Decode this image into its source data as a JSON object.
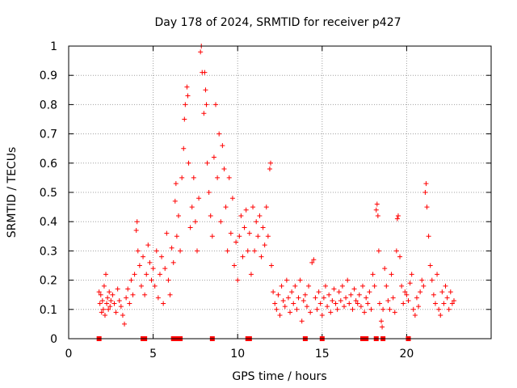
{
  "chart_data": {
    "type": "scatter",
    "title": "Day 178 of 2024, SRMTID for receiver p427",
    "xlabel": "GPS time / hours",
    "ylabel": "SRMTID / TECUs",
    "xlim": [
      0,
      25
    ],
    "ylim": [
      0,
      1
    ],
    "xticks": [
      0,
      5,
      10,
      15,
      20
    ],
    "yticks": [
      0,
      0.1,
      0.2,
      0.3,
      0.4,
      0.5,
      0.6,
      0.7,
      0.8,
      0.9,
      1
    ],
    "xtick_labels": [
      "0",
      "5",
      "10",
      "15",
      "20"
    ],
    "ytick_labels": [
      "0",
      "0.1",
      "0.2",
      "0.3",
      "0.4",
      "0.5",
      "0.6",
      "0.7",
      "0.8",
      "0.9",
      "1"
    ],
    "grid": true,
    "color": "#ff0000",
    "marker": "plus",
    "series": [
      {
        "name": "SRMTID",
        "points": [
          [
            1.8,
            0.16
          ],
          [
            1.85,
            0.12
          ],
          [
            1.9,
            0.15
          ],
          [
            1.95,
            0.09
          ],
          [
            2.0,
            0.13
          ],
          [
            2.05,
            0.1
          ],
          [
            2.1,
            0.18
          ],
          [
            2.15,
            0.08
          ],
          [
            2.2,
            0.22
          ],
          [
            2.25,
            0.12
          ],
          [
            2.3,
            0.14
          ],
          [
            2.35,
            0.1
          ],
          [
            2.4,
            0.16
          ],
          [
            2.45,
            0.11
          ],
          [
            2.5,
            0.13
          ],
          [
            2.6,
            0.15
          ],
          [
            2.7,
            0.12
          ],
          [
            2.8,
            0.09
          ],
          [
            2.9,
            0.17
          ],
          [
            3.0,
            0.13
          ],
          [
            3.1,
            0.11
          ],
          [
            3.2,
            0.08
          ],
          [
            3.3,
            0.05
          ],
          [
            3.4,
            0.14
          ],
          [
            3.5,
            0.17
          ],
          [
            3.6,
            0.12
          ],
          [
            3.7,
            0.2
          ],
          [
            3.8,
            0.15
          ],
          [
            3.9,
            0.22
          ],
          [
            4.0,
            0.37
          ],
          [
            4.05,
            0.4
          ],
          [
            4.1,
            0.3
          ],
          [
            4.2,
            0.25
          ],
          [
            4.3,
            0.18
          ],
          [
            4.4,
            0.28
          ],
          [
            4.5,
            0.15
          ],
          [
            4.6,
            0.22
          ],
          [
            4.7,
            0.32
          ],
          [
            4.8,
            0.26
          ],
          [
            4.9,
            0.2
          ],
          [
            5.0,
            0.24
          ],
          [
            5.1,
            0.18
          ],
          [
            5.2,
            0.3
          ],
          [
            5.3,
            0.14
          ],
          [
            5.4,
            0.22
          ],
          [
            5.5,
            0.28
          ],
          [
            5.6,
            0.12
          ],
          [
            5.7,
            0.24
          ],
          [
            5.8,
            0.36
          ],
          [
            5.9,
            0.2
          ],
          [
            6.0,
            0.15
          ],
          [
            6.1,
            0.31
          ],
          [
            6.2,
            0.26
          ],
          [
            6.3,
            0.47
          ],
          [
            6.35,
            0.53
          ],
          [
            6.4,
            0.35
          ],
          [
            6.5,
            0.42
          ],
          [
            6.6,
            0.3
          ],
          [
            6.7,
            0.55
          ],
          [
            6.8,
            0.65
          ],
          [
            6.85,
            0.75
          ],
          [
            6.9,
            0.8
          ],
          [
            7.0,
            0.86
          ],
          [
            7.05,
            0.83
          ],
          [
            7.1,
            0.6
          ],
          [
            7.2,
            0.38
          ],
          [
            7.3,
            0.45
          ],
          [
            7.4,
            0.55
          ],
          [
            7.5,
            0.4
          ],
          [
            7.6,
            0.3
          ],
          [
            7.7,
            0.48
          ],
          [
            7.8,
            0.98
          ],
          [
            7.85,
            1.0
          ],
          [
            7.9,
            0.91
          ],
          [
            8.0,
            0.77
          ],
          [
            8.05,
            0.91
          ],
          [
            8.1,
            0.85
          ],
          [
            8.15,
            0.8
          ],
          [
            8.2,
            0.6
          ],
          [
            8.3,
            0.5
          ],
          [
            8.4,
            0.42
          ],
          [
            8.5,
            0.35
          ],
          [
            8.6,
            0.62
          ],
          [
            8.7,
            0.8
          ],
          [
            8.8,
            0.55
          ],
          [
            8.9,
            0.7
          ],
          [
            9.0,
            0.4
          ],
          [
            9.1,
            0.66
          ],
          [
            9.2,
            0.58
          ],
          [
            9.3,
            0.45
          ],
          [
            9.4,
            0.3
          ],
          [
            9.5,
            0.55
          ],
          [
            9.6,
            0.36
          ],
          [
            9.7,
            0.48
          ],
          [
            9.8,
            0.25
          ],
          [
            9.9,
            0.33
          ],
          [
            10.0,
            0.2
          ],
          [
            10.1,
            0.35
          ],
          [
            10.2,
            0.42
          ],
          [
            10.3,
            0.28
          ],
          [
            10.4,
            0.38
          ],
          [
            10.5,
            0.44
          ],
          [
            10.6,
            0.3
          ],
          [
            10.7,
            0.36
          ],
          [
            10.8,
            0.22
          ],
          [
            10.9,
            0.45
          ],
          [
            11.0,
            0.3
          ],
          [
            11.1,
            0.4
          ],
          [
            11.2,
            0.35
          ],
          [
            11.3,
            0.42
          ],
          [
            11.4,
            0.28
          ],
          [
            11.5,
            0.38
          ],
          [
            11.6,
            0.32
          ],
          [
            11.7,
            0.45
          ],
          [
            11.8,
            0.35
          ],
          [
            11.9,
            0.58
          ],
          [
            11.95,
            0.6
          ],
          [
            12.0,
            0.25
          ],
          [
            12.1,
            0.16
          ],
          [
            12.2,
            0.12
          ],
          [
            12.3,
            0.1
          ],
          [
            12.4,
            0.15
          ],
          [
            12.5,
            0.08
          ],
          [
            12.6,
            0.18
          ],
          [
            12.7,
            0.13
          ],
          [
            12.8,
            0.11
          ],
          [
            12.9,
            0.2
          ],
          [
            13.0,
            0.14
          ],
          [
            13.1,
            0.09
          ],
          [
            13.2,
            0.16
          ],
          [
            13.3,
            0.12
          ],
          [
            13.4,
            0.18
          ],
          [
            13.5,
            0.1
          ],
          [
            13.6,
            0.14
          ],
          [
            13.7,
            0.2
          ],
          [
            13.8,
            0.06
          ],
          [
            13.9,
            0.13
          ],
          [
            14.0,
            0.15
          ],
          [
            14.1,
            0.11
          ],
          [
            14.2,
            0.18
          ],
          [
            14.3,
            0.09
          ],
          [
            14.4,
            0.26
          ],
          [
            14.5,
            0.27
          ],
          [
            14.6,
            0.14
          ],
          [
            14.7,
            0.1
          ],
          [
            14.8,
            0.16
          ],
          [
            14.9,
            0.12
          ],
          [
            15.0,
            0.08
          ],
          [
            15.1,
            0.14
          ],
          [
            15.2,
            0.18
          ],
          [
            15.3,
            0.11
          ],
          [
            15.4,
            0.15
          ],
          [
            15.5,
            0.09
          ],
          [
            15.6,
            0.13
          ],
          [
            15.7,
            0.17
          ],
          [
            15.8,
            0.12
          ],
          [
            15.9,
            0.1
          ],
          [
            16.0,
            0.16
          ],
          [
            16.1,
            0.13
          ],
          [
            16.2,
            0.18
          ],
          [
            16.3,
            0.11
          ],
          [
            16.4,
            0.14
          ],
          [
            16.5,
            0.2
          ],
          [
            16.6,
            0.12
          ],
          [
            16.7,
            0.15
          ],
          [
            16.8,
            0.1
          ],
          [
            16.9,
            0.17
          ],
          [
            17.0,
            0.13
          ],
          [
            17.1,
            0.12
          ],
          [
            17.2,
            0.15
          ],
          [
            17.3,
            0.11
          ],
          [
            17.4,
            0.18
          ],
          [
            17.5,
            0.09
          ],
          [
            17.6,
            0.14
          ],
          [
            17.7,
            0.12
          ],
          [
            17.8,
            0.16
          ],
          [
            17.9,
            0.1
          ],
          [
            18.0,
            0.22
          ],
          [
            18.1,
            0.18
          ],
          [
            18.2,
            0.44
          ],
          [
            18.25,
            0.46
          ],
          [
            18.3,
            0.42
          ],
          [
            18.35,
            0.3
          ],
          [
            18.4,
            0.12
          ],
          [
            18.5,
            0.06
          ],
          [
            18.55,
            0.04
          ],
          [
            18.6,
            0.1
          ],
          [
            18.7,
            0.24
          ],
          [
            18.8,
            0.18
          ],
          [
            18.9,
            0.13
          ],
          [
            19.0,
            0.1
          ],
          [
            19.1,
            0.22
          ],
          [
            19.2,
            0.14
          ],
          [
            19.3,
            0.09
          ],
          [
            19.4,
            0.3
          ],
          [
            19.45,
            0.41
          ],
          [
            19.5,
            0.42
          ],
          [
            19.6,
            0.28
          ],
          [
            19.7,
            0.18
          ],
          [
            19.8,
            0.12
          ],
          [
            19.9,
            0.16
          ],
          [
            20.0,
            0.15
          ],
          [
            20.1,
            0.13
          ],
          [
            20.2,
            0.19
          ],
          [
            20.3,
            0.22
          ],
          [
            20.4,
            0.1
          ],
          [
            20.5,
            0.08
          ],
          [
            20.6,
            0.14
          ],
          [
            20.7,
            0.11
          ],
          [
            20.8,
            0.16
          ],
          [
            20.9,
            0.2
          ],
          [
            21.0,
            0.18
          ],
          [
            21.1,
            0.5
          ],
          [
            21.15,
            0.53
          ],
          [
            21.2,
            0.45
          ],
          [
            21.3,
            0.35
          ],
          [
            21.4,
            0.25
          ],
          [
            21.5,
            0.2
          ],
          [
            21.6,
            0.15
          ],
          [
            21.7,
            0.12
          ],
          [
            21.8,
            0.22
          ],
          [
            21.9,
            0.1
          ],
          [
            22.0,
            0.08
          ],
          [
            22.1,
            0.16
          ],
          [
            22.2,
            0.12
          ],
          [
            22.3,
            0.18
          ],
          [
            22.4,
            0.14
          ],
          [
            22.5,
            0.1
          ],
          [
            22.6,
            0.16
          ],
          [
            22.7,
            0.12
          ],
          [
            22.8,
            0.13
          ]
        ]
      }
    ],
    "bottom_markers": [
      1.8,
      4.4,
      4.5,
      6.2,
      6.4,
      6.5,
      6.6,
      8.5,
      10.6,
      10.7,
      14.0,
      15.0,
      17.4,
      17.5,
      17.6,
      18.2,
      18.6,
      20.1
    ]
  }
}
